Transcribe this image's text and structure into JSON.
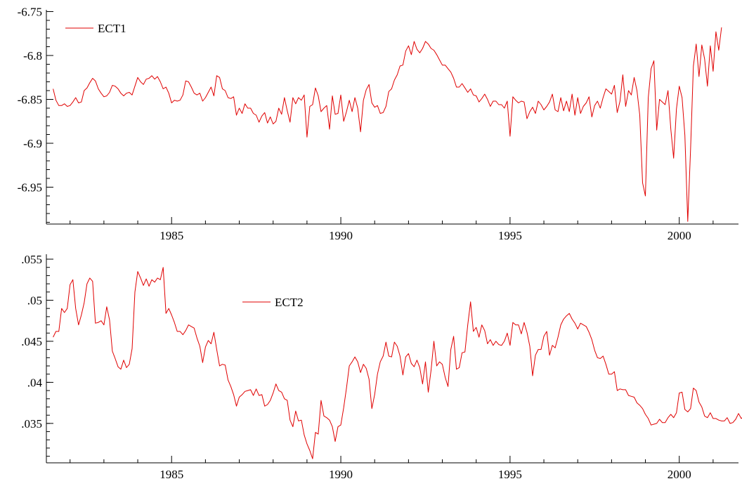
{
  "chart_data": [
    {
      "type": "line",
      "title": "",
      "xlabel": "",
      "ylabel": "",
      "xlim": [
        1981.3,
        2001.75
      ],
      "ylim": [
        -6.992,
        -6.748
      ],
      "x_ticks": [
        1985,
        1990,
        1995,
        2000
      ],
      "y_ticks": [
        -6.75,
        -6.8,
        -6.85,
        -6.9,
        -6.95
      ],
      "y_tick_labels": [
        "-6.75",
        "-6.8",
        "-6.85",
        "-6.9",
        "-6.95"
      ],
      "legend": "top-left",
      "grid": false,
      "series": [
        {
          "name": "ECT1",
          "color": "#e00000",
          "x_start": 1981.5,
          "step": 0.0833333,
          "values": [
            -6.838,
            -6.851,
            -6.857,
            -6.857,
            -6.855,
            -6.858,
            -6.857,
            -6.853,
            -6.848,
            -6.854,
            -6.853,
            -6.84,
            -6.837,
            -6.831,
            -6.826,
            -6.829,
            -6.838,
            -6.843,
            -6.847,
            -6.846,
            -6.842,
            -6.834,
            -6.835,
            -6.838,
            -6.843,
            -6.846,
            -6.843,
            -6.842,
            -6.845,
            -6.835,
            -6.825,
            -6.83,
            -6.833,
            -6.827,
            -6.826,
            -6.823,
            -6.827,
            -6.824,
            -6.83,
            -6.838,
            -6.836,
            -6.843,
            -6.854,
            -6.851,
            -6.852,
            -6.851,
            -6.845,
            -6.829,
            -6.83,
            -6.836,
            -6.843,
            -6.845,
            -6.843,
            -6.852,
            -6.848,
            -6.842,
            -6.836,
            -6.846,
            -6.823,
            -6.825,
            -6.838,
            -6.84,
            -6.848,
            -6.849,
            -6.847,
            -6.868,
            -6.86,
            -6.866,
            -6.855,
            -6.86,
            -6.86,
            -6.866,
            -6.868,
            -6.876,
            -6.869,
            -6.865,
            -6.877,
            -6.87,
            -6.878,
            -6.875,
            -6.86,
            -6.867,
            -6.848,
            -6.863,
            -6.876,
            -6.848,
            -6.855,
            -6.848,
            -6.851,
            -6.845,
            -6.893,
            -6.858,
            -6.856,
            -6.837,
            -6.846,
            -6.864,
            -6.86,
            -6.857,
            -6.884,
            -6.846,
            -6.867,
            -6.866,
            -6.845,
            -6.875,
            -6.864,
            -6.851,
            -6.864,
            -6.848,
            -6.86,
            -6.887,
            -6.851,
            -6.839,
            -6.833,
            -6.854,
            -6.859,
            -6.857,
            -6.866,
            -6.865,
            -6.858,
            -6.841,
            -6.838,
            -6.828,
            -6.822,
            -6.812,
            -6.811,
            -6.795,
            -6.789,
            -6.799,
            -6.784,
            -6.793,
            -6.797,
            -6.792,
            -6.784,
            -6.787,
            -6.792,
            -6.794,
            -6.799,
            -6.805,
            -6.811,
            -6.811,
            -6.815,
            -6.819,
            -6.826,
            -6.836,
            -6.836,
            -6.832,
            -6.837,
            -6.842,
            -6.838,
            -6.845,
            -6.846,
            -6.853,
            -6.849,
            -6.844,
            -6.85,
            -6.858,
            -6.852,
            -6.852,
            -6.856,
            -6.856,
            -6.86,
            -6.852,
            -6.892,
            -6.847,
            -6.851,
            -6.854,
            -6.852,
            -6.853,
            -6.872,
            -6.864,
            -6.859,
            -6.866,
            -6.852,
            -6.856,
            -6.862,
            -6.858,
            -6.853,
            -6.844,
            -6.862,
            -6.864,
            -6.848,
            -6.863,
            -6.852,
            -6.864,
            -6.844,
            -6.868,
            -6.848,
            -6.866,
            -6.858,
            -6.854,
            -6.847,
            -6.87,
            -6.857,
            -6.852,
            -6.86,
            -6.848,
            -6.838,
            -6.841,
            -6.844,
            -6.834,
            -6.865,
            -6.852,
            -6.822,
            -6.858,
            -6.84,
            -6.845,
            -6.825,
            -6.84,
            -6.868,
            -6.945,
            -6.96,
            -6.848,
            -6.815,
            -6.806,
            -6.885,
            -6.85,
            -6.853,
            -6.856,
            -6.84,
            -6.884,
            -6.917,
            -6.861,
            -6.835,
            -6.848,
            -6.891,
            -6.989,
            -6.907,
            -6.812,
            -6.787,
            -6.824,
            -6.788,
            -6.804,
            -6.835,
            -6.789,
            -6.818,
            -6.773,
            -6.794,
            -6.768
          ]
        }
      ]
    },
    {
      "type": "line",
      "title": "",
      "xlabel": "",
      "ylabel": "",
      "xlim": [
        1981.3,
        2001.75
      ],
      "ylim": [
        0.0302,
        0.0556
      ],
      "x_ticks": [
        1985,
        1990,
        1995,
        2000
      ],
      "y_ticks": [
        0.055,
        0.05,
        0.045,
        0.04,
        0.035
      ],
      "y_tick_labels": [
        ".055",
        ".05",
        ".045",
        ".04",
        ".035"
      ],
      "legend": "center",
      "grid": false,
      "series": [
        {
          "name": "ECT2",
          "color": "#e00000",
          "x_start": 1981.5,
          "step": 0.0833333,
          "values": [
            0.0455,
            0.0462,
            0.0462,
            0.049,
            0.0485,
            0.049,
            0.0519,
            0.0525,
            0.049,
            0.047,
            0.0482,
            0.0497,
            0.052,
            0.0527,
            0.0523,
            0.0472,
            0.0473,
            0.0475,
            0.047,
            0.0492,
            0.0476,
            0.0438,
            0.0429,
            0.0419,
            0.0416,
            0.0427,
            0.0418,
            0.0422,
            0.0441,
            0.051,
            0.0535,
            0.0527,
            0.0518,
            0.0526,
            0.0517,
            0.0525,
            0.0522,
            0.0527,
            0.0525,
            0.054,
            0.0484,
            0.049,
            0.0482,
            0.0473,
            0.0462,
            0.0462,
            0.0458,
            0.0463,
            0.047,
            0.0468,
            0.0466,
            0.0454,
            0.0444,
            0.0424,
            0.0443,
            0.0451,
            0.0447,
            0.0461,
            0.044,
            0.042,
            0.0422,
            0.0421,
            0.0403,
            0.0395,
            0.0385,
            0.0371,
            0.0382,
            0.0385,
            0.0389,
            0.039,
            0.0391,
            0.0384,
            0.0392,
            0.0384,
            0.0385,
            0.0371,
            0.0373,
            0.0378,
            0.0387,
            0.0398,
            0.039,
            0.0388,
            0.038,
            0.0378,
            0.0354,
            0.0346,
            0.0365,
            0.0353,
            0.0354,
            0.0336,
            0.0325,
            0.0317,
            0.0307,
            0.0339,
            0.0337,
            0.0378,
            0.0359,
            0.0357,
            0.0354,
            0.0346,
            0.0328,
            0.0346,
            0.0348,
            0.0369,
            0.0393,
            0.042,
            0.0425,
            0.0431,
            0.0425,
            0.0412,
            0.0422,
            0.0417,
            0.0404,
            0.0368,
            0.0385,
            0.041,
            0.0425,
            0.0432,
            0.0449,
            0.0432,
            0.0431,
            0.0449,
            0.0444,
            0.0432,
            0.0409,
            0.0431,
            0.0435,
            0.0423,
            0.0419,
            0.0427,
            0.0418,
            0.0398,
            0.0425,
            0.0388,
            0.0415,
            0.045,
            0.042,
            0.0425,
            0.0422,
            0.0406,
            0.0395,
            0.044,
            0.0456,
            0.0416,
            0.0418,
            0.0436,
            0.0437,
            0.047,
            0.0498,
            0.0462,
            0.0467,
            0.0455,
            0.047,
            0.0463,
            0.0447,
            0.0452,
            0.0445,
            0.045,
            0.0446,
            0.0445,
            0.045,
            0.046,
            0.0445,
            0.0473,
            0.047,
            0.047,
            0.0459,
            0.0473,
            0.0461,
            0.0444,
            0.0408,
            0.0433,
            0.044,
            0.044,
            0.0456,
            0.0462,
            0.0433,
            0.0445,
            0.0442,
            0.0455,
            0.047,
            0.0477,
            0.0481,
            0.0484,
            0.0477,
            0.0472,
            0.0465,
            0.0472,
            0.047,
            0.0468,
            0.0461,
            0.0452,
            0.0439,
            0.043,
            0.0429,
            0.0432,
            0.0422,
            0.041,
            0.041,
            0.0413,
            0.039,
            0.0392,
            0.0391,
            0.0391,
            0.0384,
            0.0383,
            0.0382,
            0.0375,
            0.0372,
            0.0368,
            0.0361,
            0.0356,
            0.0348,
            0.0349,
            0.035,
            0.0355,
            0.0351,
            0.0351,
            0.0357,
            0.0361,
            0.0357,
            0.0363,
            0.0387,
            0.0388,
            0.0367,
            0.0364,
            0.0368,
            0.0393,
            0.039,
            0.0376,
            0.037,
            0.0359,
            0.0357,
            0.0363,
            0.0356,
            0.0356,
            0.0354,
            0.0353,
            0.0353,
            0.0357,
            0.035,
            0.0351,
            0.0355,
            0.0362,
            0.0356,
            0.0359,
            0.0374
          ]
        }
      ]
    }
  ]
}
